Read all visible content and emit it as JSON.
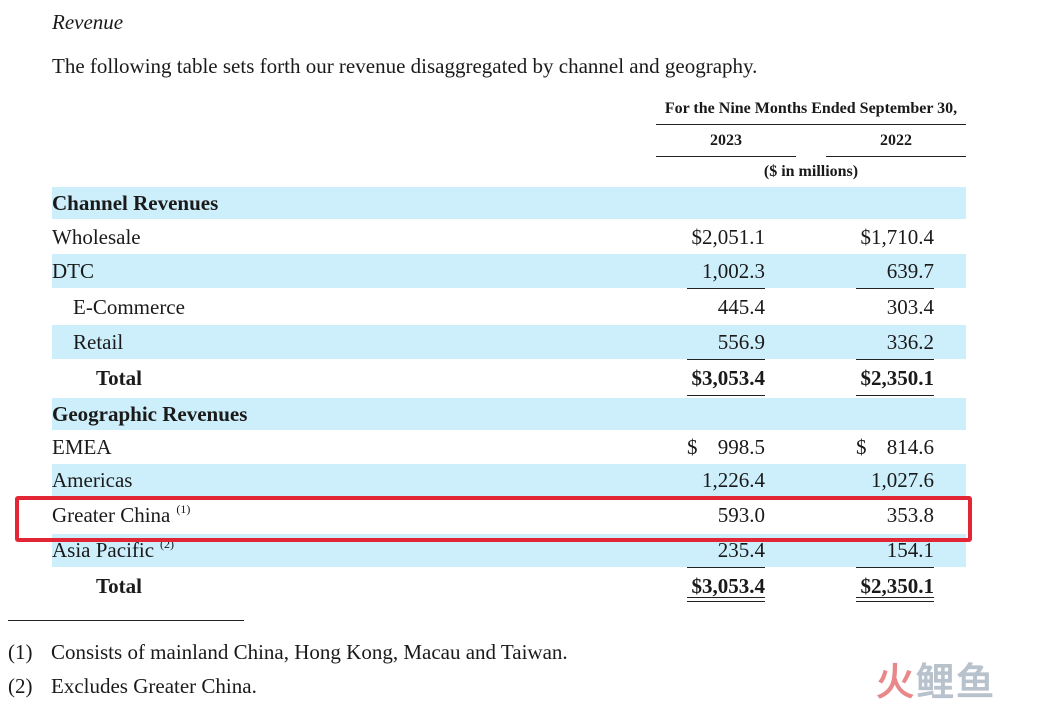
{
  "section_title": "Revenue",
  "intro": "The following table sets forth our revenue disaggregated by channel and geography.",
  "header": {
    "period": "For the Nine Months Ended September 30,",
    "year1": "2023",
    "year2": "2022",
    "units": "($ in millions)"
  },
  "channel": {
    "heading": "Channel Revenues",
    "rows": [
      {
        "label": "Wholesale",
        "v2023": "$2,051.1",
        "v2022": "$1,710.4"
      },
      {
        "label": "DTC",
        "v2023": "1,002.3",
        "v2022": "639.7"
      },
      {
        "label": "E-Commerce",
        "v2023": "445.4",
        "v2022": "303.4"
      },
      {
        "label": "Retail",
        "v2023": "556.9",
        "v2022": "336.2"
      }
    ],
    "total": {
      "label": "Total",
      "v2023": "$3,053.4",
      "v2022": "$2,350.1"
    }
  },
  "geo": {
    "heading": "Geographic Revenues",
    "rows": [
      {
        "label": "EMEA",
        "dollar": "$",
        "v2023": "998.5",
        "v2022": "814.6"
      },
      {
        "label": "Americas",
        "v2023": "1,226.4",
        "v2022": "1,027.6"
      },
      {
        "label": "Greater China",
        "note": "(1)",
        "v2023": "593.0",
        "v2022": "353.8"
      },
      {
        "label": "Asia Pacific",
        "note": "(2)",
        "v2023": "235.4",
        "v2022": "154.1"
      }
    ],
    "total": {
      "label": "Total",
      "v2023": "$3,053.4",
      "v2022": "$2,350.1"
    }
  },
  "footnotes": [
    {
      "num": "(1)",
      "text": "Consists of mainland China, Hong Kong, Macau and Taiwan."
    },
    {
      "num": "(2)",
      "text": "Excludes Greater China."
    }
  ],
  "watermark": {
    "part1": "火",
    "part2": "鲤鱼"
  },
  "colors": {
    "row_shade": "#cdeefb",
    "highlight": "#e32636"
  }
}
